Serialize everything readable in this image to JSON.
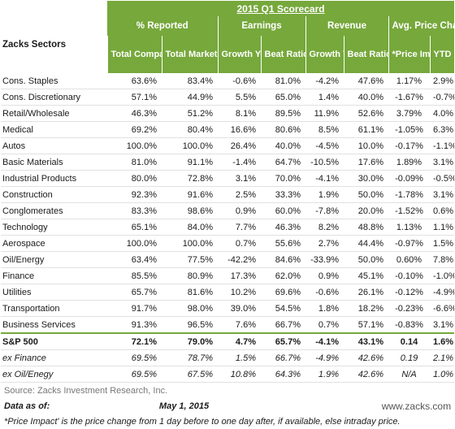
{
  "title": "2015 Q1 Scorecard",
  "groups": {
    "reported": "% Reported",
    "earnings": "Earnings",
    "revenue": "Revenue",
    "price": "Avg. Price Change"
  },
  "sector_header": "Zacks Sectors",
  "columns": [
    "Total Companies",
    "Total Market Cap",
    "Growth YoY",
    "Beat Ratio",
    "Growth YoY",
    "Beat Ratio",
    "*Price Impact",
    "YTD"
  ],
  "rows": [
    {
      "sector": "Cons. Staples",
      "total_companies": "63.6%",
      "total_market_cap": "83.4%",
      "earn_growth": "-0.6%",
      "earn_beat": "81.0%",
      "rev_growth": "-4.2%",
      "rev_beat": "47.6%",
      "price_impact": "1.17%",
      "ytd": "2.9%"
    },
    {
      "sector": "Cons. Discretionary",
      "total_companies": "57.1%",
      "total_market_cap": "44.9%",
      "earn_growth": "5.5%",
      "earn_beat": "65.0%",
      "rev_growth": "1.4%",
      "rev_beat": "40.0%",
      "price_impact": "-1.67%",
      "ytd": "-0.7%"
    },
    {
      "sector": "Retail/Wholesale",
      "total_companies": "46.3%",
      "total_market_cap": "51.2%",
      "earn_growth": "8.1%",
      "earn_beat": "89.5%",
      "rev_growth": "11.9%",
      "rev_beat": "52.6%",
      "price_impact": "3.79%",
      "ytd": "4.0%"
    },
    {
      "sector": "Medical",
      "total_companies": "69.2%",
      "total_market_cap": "80.4%",
      "earn_growth": "16.6%",
      "earn_beat": "80.6%",
      "rev_growth": "8.5%",
      "rev_beat": "61.1%",
      "price_impact": "-1.05%",
      "ytd": "6.3%"
    },
    {
      "sector": "Autos",
      "total_companies": "100.0%",
      "total_market_cap": "100.0%",
      "earn_growth": "26.4%",
      "earn_beat": "40.0%",
      "rev_growth": "-4.5%",
      "rev_beat": "10.0%",
      "price_impact": "-0.17%",
      "ytd": "-1.1%"
    },
    {
      "sector": "Basic Materials",
      "total_companies": "81.0%",
      "total_market_cap": "91.1%",
      "earn_growth": "-1.4%",
      "earn_beat": "64.7%",
      "rev_growth": "-10.5%",
      "rev_beat": "17.6%",
      "price_impact": "1.89%",
      "ytd": "3.1%"
    },
    {
      "sector": "Industrial Products",
      "total_companies": "80.0%",
      "total_market_cap": "72.8%",
      "earn_growth": "3.1%",
      "earn_beat": "70.0%",
      "rev_growth": "-4.1%",
      "rev_beat": "30.0%",
      "price_impact": "-0.09%",
      "ytd": "-0.5%"
    },
    {
      "sector": "Construction",
      "total_companies": "92.3%",
      "total_market_cap": "91.6%",
      "earn_growth": "2.5%",
      "earn_beat": "33.3%",
      "rev_growth": "1.9%",
      "rev_beat": "50.0%",
      "price_impact": "-1.78%",
      "ytd": "3.1%"
    },
    {
      "sector": "Conglomerates",
      "total_companies": "83.3%",
      "total_market_cap": "98.6%",
      "earn_growth": "0.9%",
      "earn_beat": "60.0%",
      "rev_growth": "-7.8%",
      "rev_beat": "20.0%",
      "price_impact": "-1.52%",
      "ytd": "0.6%"
    },
    {
      "sector": "Technology",
      "total_companies": "65.1%",
      "total_market_cap": "84.0%",
      "earn_growth": "7.7%",
      "earn_beat": "46.3%",
      "rev_growth": "8.2%",
      "rev_beat": "48.8%",
      "price_impact": "1.13%",
      "ytd": "1.1%"
    },
    {
      "sector": "Aerospace",
      "total_companies": "100.0%",
      "total_market_cap": "100.0%",
      "earn_growth": "0.7%",
      "earn_beat": "55.6%",
      "rev_growth": "2.7%",
      "rev_beat": "44.4%",
      "price_impact": "-0.97%",
      "ytd": "1.5%"
    },
    {
      "sector": "Oil/Energy",
      "total_companies": "63.4%",
      "total_market_cap": "77.5%",
      "earn_growth": "-42.2%",
      "earn_beat": "84.6%",
      "rev_growth": "-33.9%",
      "rev_beat": "50.0%",
      "price_impact": "0.60%",
      "ytd": "7.8%"
    },
    {
      "sector": "Finance",
      "total_companies": "85.5%",
      "total_market_cap": "80.9%",
      "earn_growth": "17.3%",
      "earn_beat": "62.0%",
      "rev_growth": "0.9%",
      "rev_beat": "45.1%",
      "price_impact": "-0.10%",
      "ytd": "-1.0%"
    },
    {
      "sector": "Utilities",
      "total_companies": "65.7%",
      "total_market_cap": "81.6%",
      "earn_growth": "10.2%",
      "earn_beat": "69.6%",
      "rev_growth": "-0.6%",
      "rev_beat": "26.1%",
      "price_impact": "-0.12%",
      "ytd": "-4.9%"
    },
    {
      "sector": "Transportation",
      "total_companies": "91.7%",
      "total_market_cap": "98.0%",
      "earn_growth": "39.0%",
      "earn_beat": "54.5%",
      "rev_growth": "1.8%",
      "rev_beat": "18.2%",
      "price_impact": "-0.23%",
      "ytd": "-6.6%"
    },
    {
      "sector": "Business Services",
      "total_companies": "91.3%",
      "total_market_cap": "96.5%",
      "earn_growth": "7.6%",
      "earn_beat": "66.7%",
      "rev_growth": "0.7%",
      "rev_beat": "57.1%",
      "price_impact": "-0.83%",
      "ytd": "3.1%"
    }
  ],
  "sp500": {
    "sector": "S&P 500",
    "total_companies": "72.1%",
    "total_market_cap": "79.0%",
    "earn_growth": "4.7%",
    "earn_beat": "65.7%",
    "rev_growth": "-4.1%",
    "rev_beat": "43.1%",
    "price_impact": "0.14",
    "ytd": "1.6%"
  },
  "ex_rows": [
    {
      "sector": "ex Finance",
      "total_companies": "69.5%",
      "total_market_cap": "78.7%",
      "earn_growth": "1.5%",
      "earn_beat": "66.7%",
      "rev_growth": "-4.9%",
      "rev_beat": "42.6%",
      "price_impact": "0.19",
      "ytd": "2.1%"
    },
    {
      "sector": "ex Oil/Enegy",
      "total_companies": "69.5%",
      "total_market_cap": "67.5%",
      "earn_growth": "10.8%",
      "earn_beat": "64.3%",
      "rev_growth": "1.9%",
      "rev_beat": "42.6%",
      "price_impact": "N/A",
      "ytd": "1.0%"
    }
  ],
  "source": "Source: Zacks Investment Research, Inc.",
  "data_as_of_label": "Data as of:",
  "data_as_of_date": "May 1, 2015",
  "website": "www.zacks.com",
  "footnote": "*Price Impact' is the price change from 1 day before to one day after, if available, else intraday price.",
  "colors": {
    "header_green": "#76a83b",
    "text": "#1a1a1a",
    "source_gray": "#777777"
  }
}
